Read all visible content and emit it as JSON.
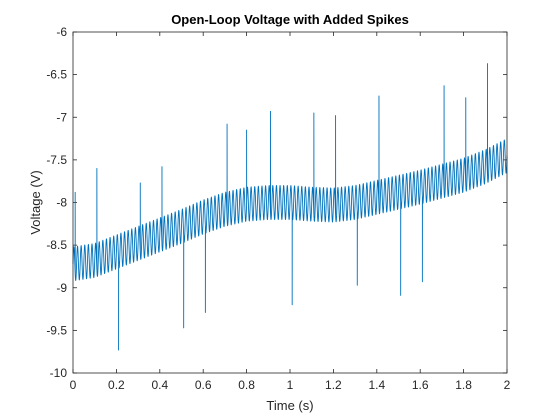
{
  "chart_data": {
    "type": "line",
    "title": "Open-Loop Voltage with Added Spikes",
    "xlabel": "Time (s)",
    "ylabel": "Voltage (V)",
    "xlim": [
      0,
      2
    ],
    "ylim": [
      -10,
      -6
    ],
    "xticks": [
      0,
      0.2,
      0.4,
      0.6,
      0.8,
      1,
      1.2,
      1.4,
      1.6,
      1.8,
      2
    ],
    "xtick_labels": [
      "0",
      "0.2",
      "0.4",
      "0.6",
      "0.8",
      "1",
      "1.2",
      "1.4",
      "1.6",
      "1.8",
      "2"
    ],
    "yticks": [
      -10,
      -9.5,
      -9,
      -8.5,
      -8,
      -7.5,
      -7,
      -6.5,
      -6
    ],
    "ytick_labels": [
      "-10",
      "-9.5",
      "-9",
      "-8.5",
      "-8",
      "-7.5",
      "-7",
      "-6.5",
      "-6"
    ],
    "grid": false,
    "colors": {
      "series": "#0072BD",
      "axes": "#262626",
      "background": "#ffffff"
    },
    "series": [
      {
        "baseline": {
          "x": [
            0,
            0.1,
            0.2,
            0.3,
            0.4,
            0.5,
            0.6,
            0.7,
            0.8,
            0.9,
            1.0,
            1.1,
            1.2,
            1.3,
            1.4,
            1.5,
            1.6,
            1.7,
            1.8,
            1.9,
            2.0
          ],
          "y": [
            -8.72,
            -8.68,
            -8.58,
            -8.48,
            -8.38,
            -8.28,
            -8.17,
            -8.08,
            -8.02,
            -8.0,
            -8.0,
            -8.02,
            -8.03,
            -8.0,
            -7.94,
            -7.88,
            -7.82,
            -7.75,
            -7.68,
            -7.58,
            -7.45
          ]
        },
        "oscillation": {
          "amplitude": 0.2,
          "frequency_hz": 60
        },
        "spikes": [
          {
            "x": 0.01,
            "y": -7.88
          },
          {
            "x": 0.11,
            "y": -7.6
          },
          {
            "x": 0.21,
            "y": -9.73
          },
          {
            "x": 0.31,
            "y": -7.77
          },
          {
            "x": 0.41,
            "y": -7.58
          },
          {
            "x": 0.51,
            "y": -9.47
          },
          {
            "x": 0.61,
            "y": -9.29
          },
          {
            "x": 0.71,
            "y": -7.08
          },
          {
            "x": 0.8,
            "y": -7.15
          },
          {
            "x": 0.91,
            "y": -6.93
          },
          {
            "x": 1.01,
            "y": -9.2
          },
          {
            "x": 1.11,
            "y": -6.95
          },
          {
            "x": 1.21,
            "y": -6.98
          },
          {
            "x": 1.31,
            "y": -8.97
          },
          {
            "x": 1.41,
            "y": -6.75
          },
          {
            "x": 1.51,
            "y": -9.09
          },
          {
            "x": 1.61,
            "y": -8.93
          },
          {
            "x": 1.71,
            "y": -6.63
          },
          {
            "x": 1.81,
            "y": -6.77
          },
          {
            "x": 1.91,
            "y": -6.37
          }
        ]
      }
    ]
  }
}
